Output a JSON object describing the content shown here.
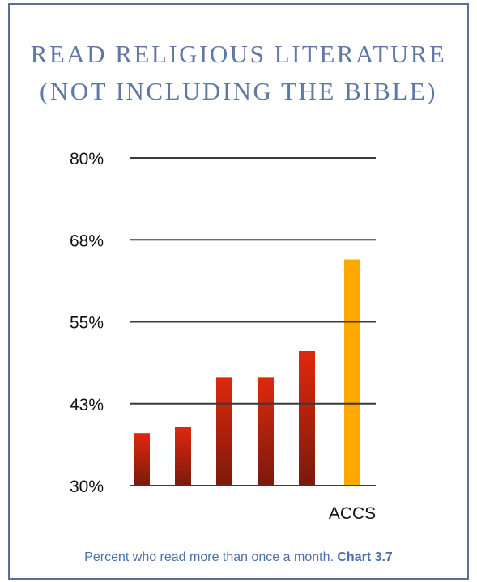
{
  "title": {
    "line1": "READ RELIGIOUS LITERATURE",
    "line2": "(NOT INCLUDING THE BIBLE)"
  },
  "caption": {
    "text": "Percent who read more than once a month.",
    "ref": "Chart 3.7"
  },
  "colors": {
    "border": "#5a6f94",
    "title": "#5f78a6",
    "caption": "#4a6fb0",
    "bar_top": "#e0280e",
    "bar_bottom": "#7a1a0c",
    "highlight": "#ffa800",
    "grid": "#3a3a3a"
  },
  "chart_data": {
    "type": "bar",
    "categories": [
      "",
      "",
      "",
      "",
      "",
      "ACCS"
    ],
    "values": [
      38,
      39,
      46.5,
      46.5,
      50.5,
      64.5
    ],
    "highlight_index": 5,
    "yticks": [
      "80%",
      "68%",
      "55%",
      "43%",
      "30%"
    ],
    "ytick_values": [
      80,
      67.5,
      55,
      42.5,
      30
    ],
    "ylim": [
      30,
      80
    ],
    "grid": true,
    "xlabel": "",
    "ylabel": ""
  }
}
